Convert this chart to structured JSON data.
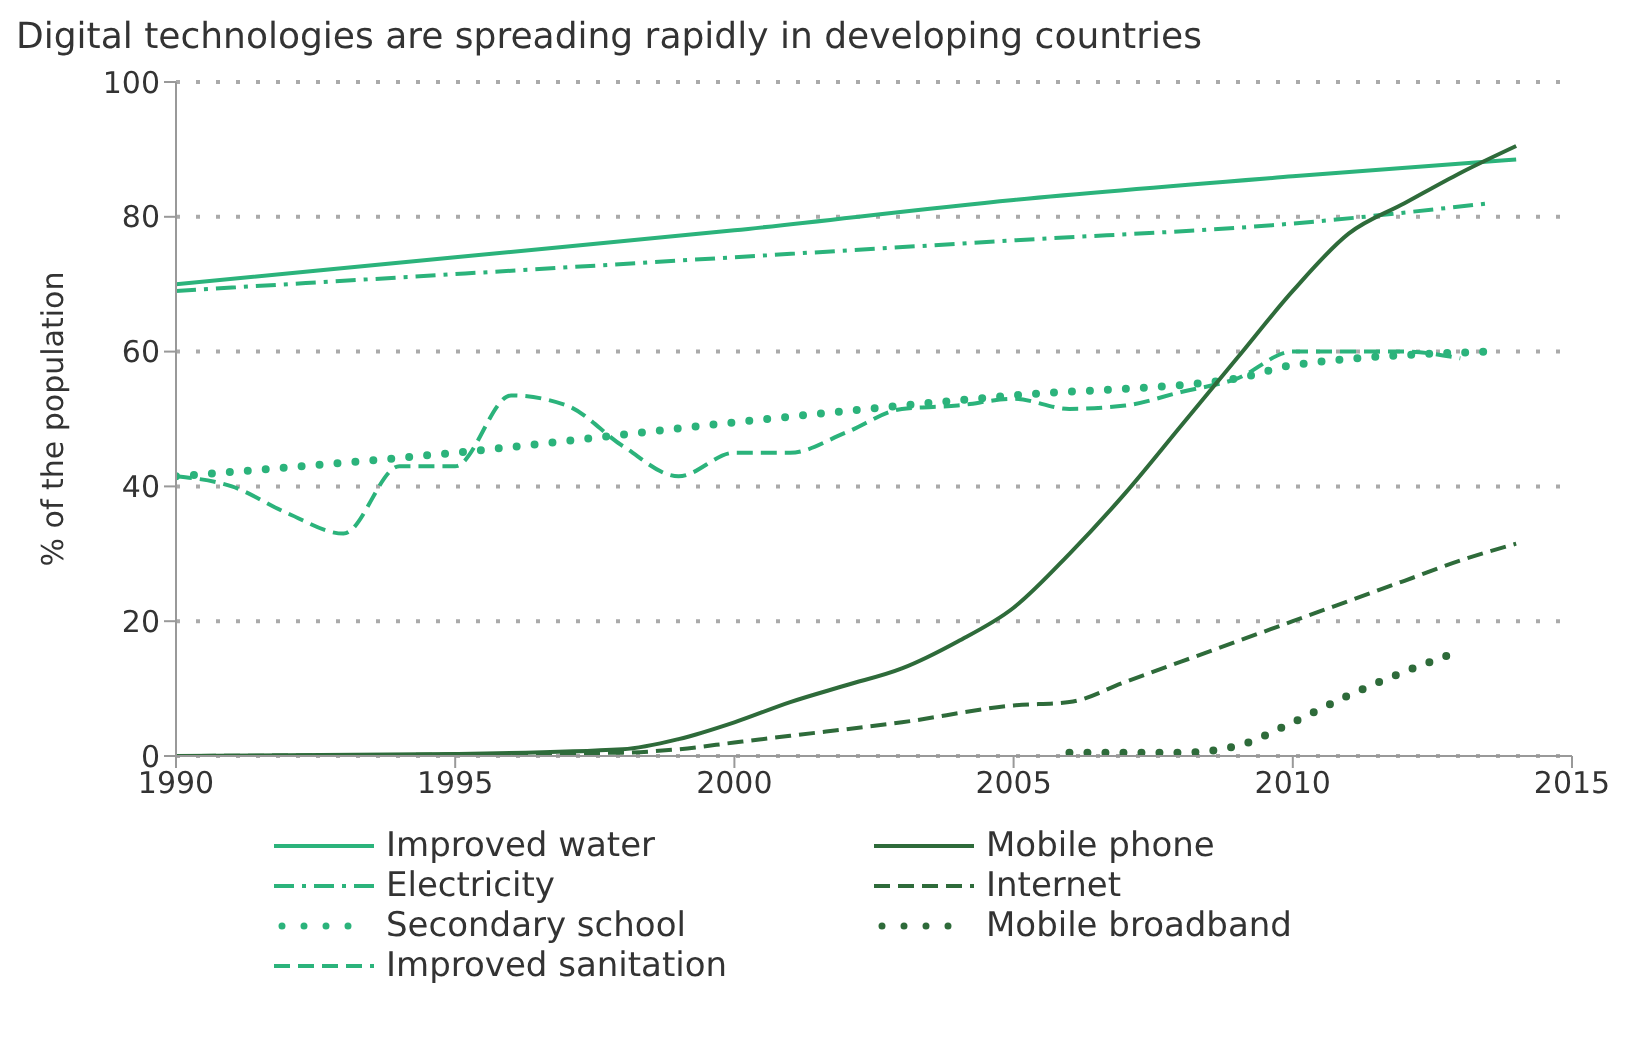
{
  "chart_data": {
    "type": "line",
    "title": "Digital technologies are spreading rapidly in developing countries",
    "ylabel": "% of the population",
    "xlim": [
      1990,
      2015
    ],
    "xticks": [
      1990,
      1995,
      2000,
      2005,
      2010,
      2015
    ],
    "ylim": [
      0,
      100
    ],
    "yticks": [
      0,
      20,
      40,
      60,
      80,
      100
    ],
    "grid": "y",
    "legend": "bottom",
    "marker": "none",
    "series": [
      {
        "name": "Improved water",
        "color": "#2bb37b",
        "line_style": "solid",
        "x": [
          1990,
          1995,
          2000,
          2005,
          2010,
          2014
        ],
        "values": [
          70,
          74,
          78,
          82.5,
          86,
          88.5
        ]
      },
      {
        "name": "Electricity",
        "color": "#2bb37b",
        "line_style": "dashdot",
        "x": [
          1990,
          1995,
          2000,
          2005,
          2010,
          2013.5
        ],
        "values": [
          69,
          71.5,
          74,
          76.5,
          79,
          82
        ]
      },
      {
        "name": "Secondary school",
        "color": "#2bb37b",
        "line_style": "dotted",
        "x": [
          1990,
          1995,
          2000,
          2005,
          2009,
          2010,
          2013.5
        ],
        "values": [
          41.5,
          45,
          49.5,
          53.5,
          56,
          58,
          60
        ]
      },
      {
        "name": "Improved sanitation",
        "color": "#2bb37b",
        "line_style": "dashed",
        "x": [
          1990,
          1991,
          1992,
          1993,
          1994,
          1995,
          1996,
          1997,
          1998,
          1999,
          2000,
          2001,
          2002,
          2003,
          2004,
          2005,
          2006,
          2007,
          2008,
          2009,
          2010,
          2011,
          2012,
          2013
        ],
        "values": [
          41.5,
          40,
          36,
          33,
          43,
          43,
          53.5,
          52,
          46,
          41.5,
          45,
          45,
          48,
          51.5,
          52,
          53,
          51.5,
          52,
          54,
          56,
          60,
          60,
          60,
          59
        ]
      },
      {
        "name": "Mobile phone",
        "color": "#2e6b3a",
        "line_style": "solid",
        "x": [
          1990,
          1995,
          1998,
          1999,
          2000,
          2001,
          2002,
          2003,
          2004,
          2005,
          2006,
          2007,
          2008,
          2009,
          2010,
          2011,
          2012,
          2013,
          2014
        ],
        "values": [
          0,
          0.3,
          1,
          2.5,
          5,
          8,
          10.5,
          13,
          17,
          22,
          30,
          39,
          49,
          59,
          69,
          77.5,
          82,
          86.5,
          90.5
        ]
      },
      {
        "name": "Internet",
        "color": "#2e6b3a",
        "line_style": "dashed",
        "x": [
          1990,
          1998,
          1999,
          2000,
          2001,
          2003,
          2005,
          2006,
          2007,
          2008,
          2009,
          2010,
          2011,
          2012,
          2013,
          2014
        ],
        "values": [
          0,
          0.5,
          1,
          2,
          3,
          5,
          7.5,
          8,
          11,
          14,
          17,
          20,
          23,
          26,
          29,
          31.5
        ]
      },
      {
        "name": "Mobile broadband",
        "color": "#2e6b3a",
        "line_style": "dotted",
        "x": [
          2006,
          2007,
          2008,
          2009,
          2010,
          2011,
          2012,
          2012.8
        ],
        "values": [
          0.5,
          0.5,
          0.5,
          1.5,
          5,
          9,
          12.5,
          15
        ]
      }
    ]
  }
}
